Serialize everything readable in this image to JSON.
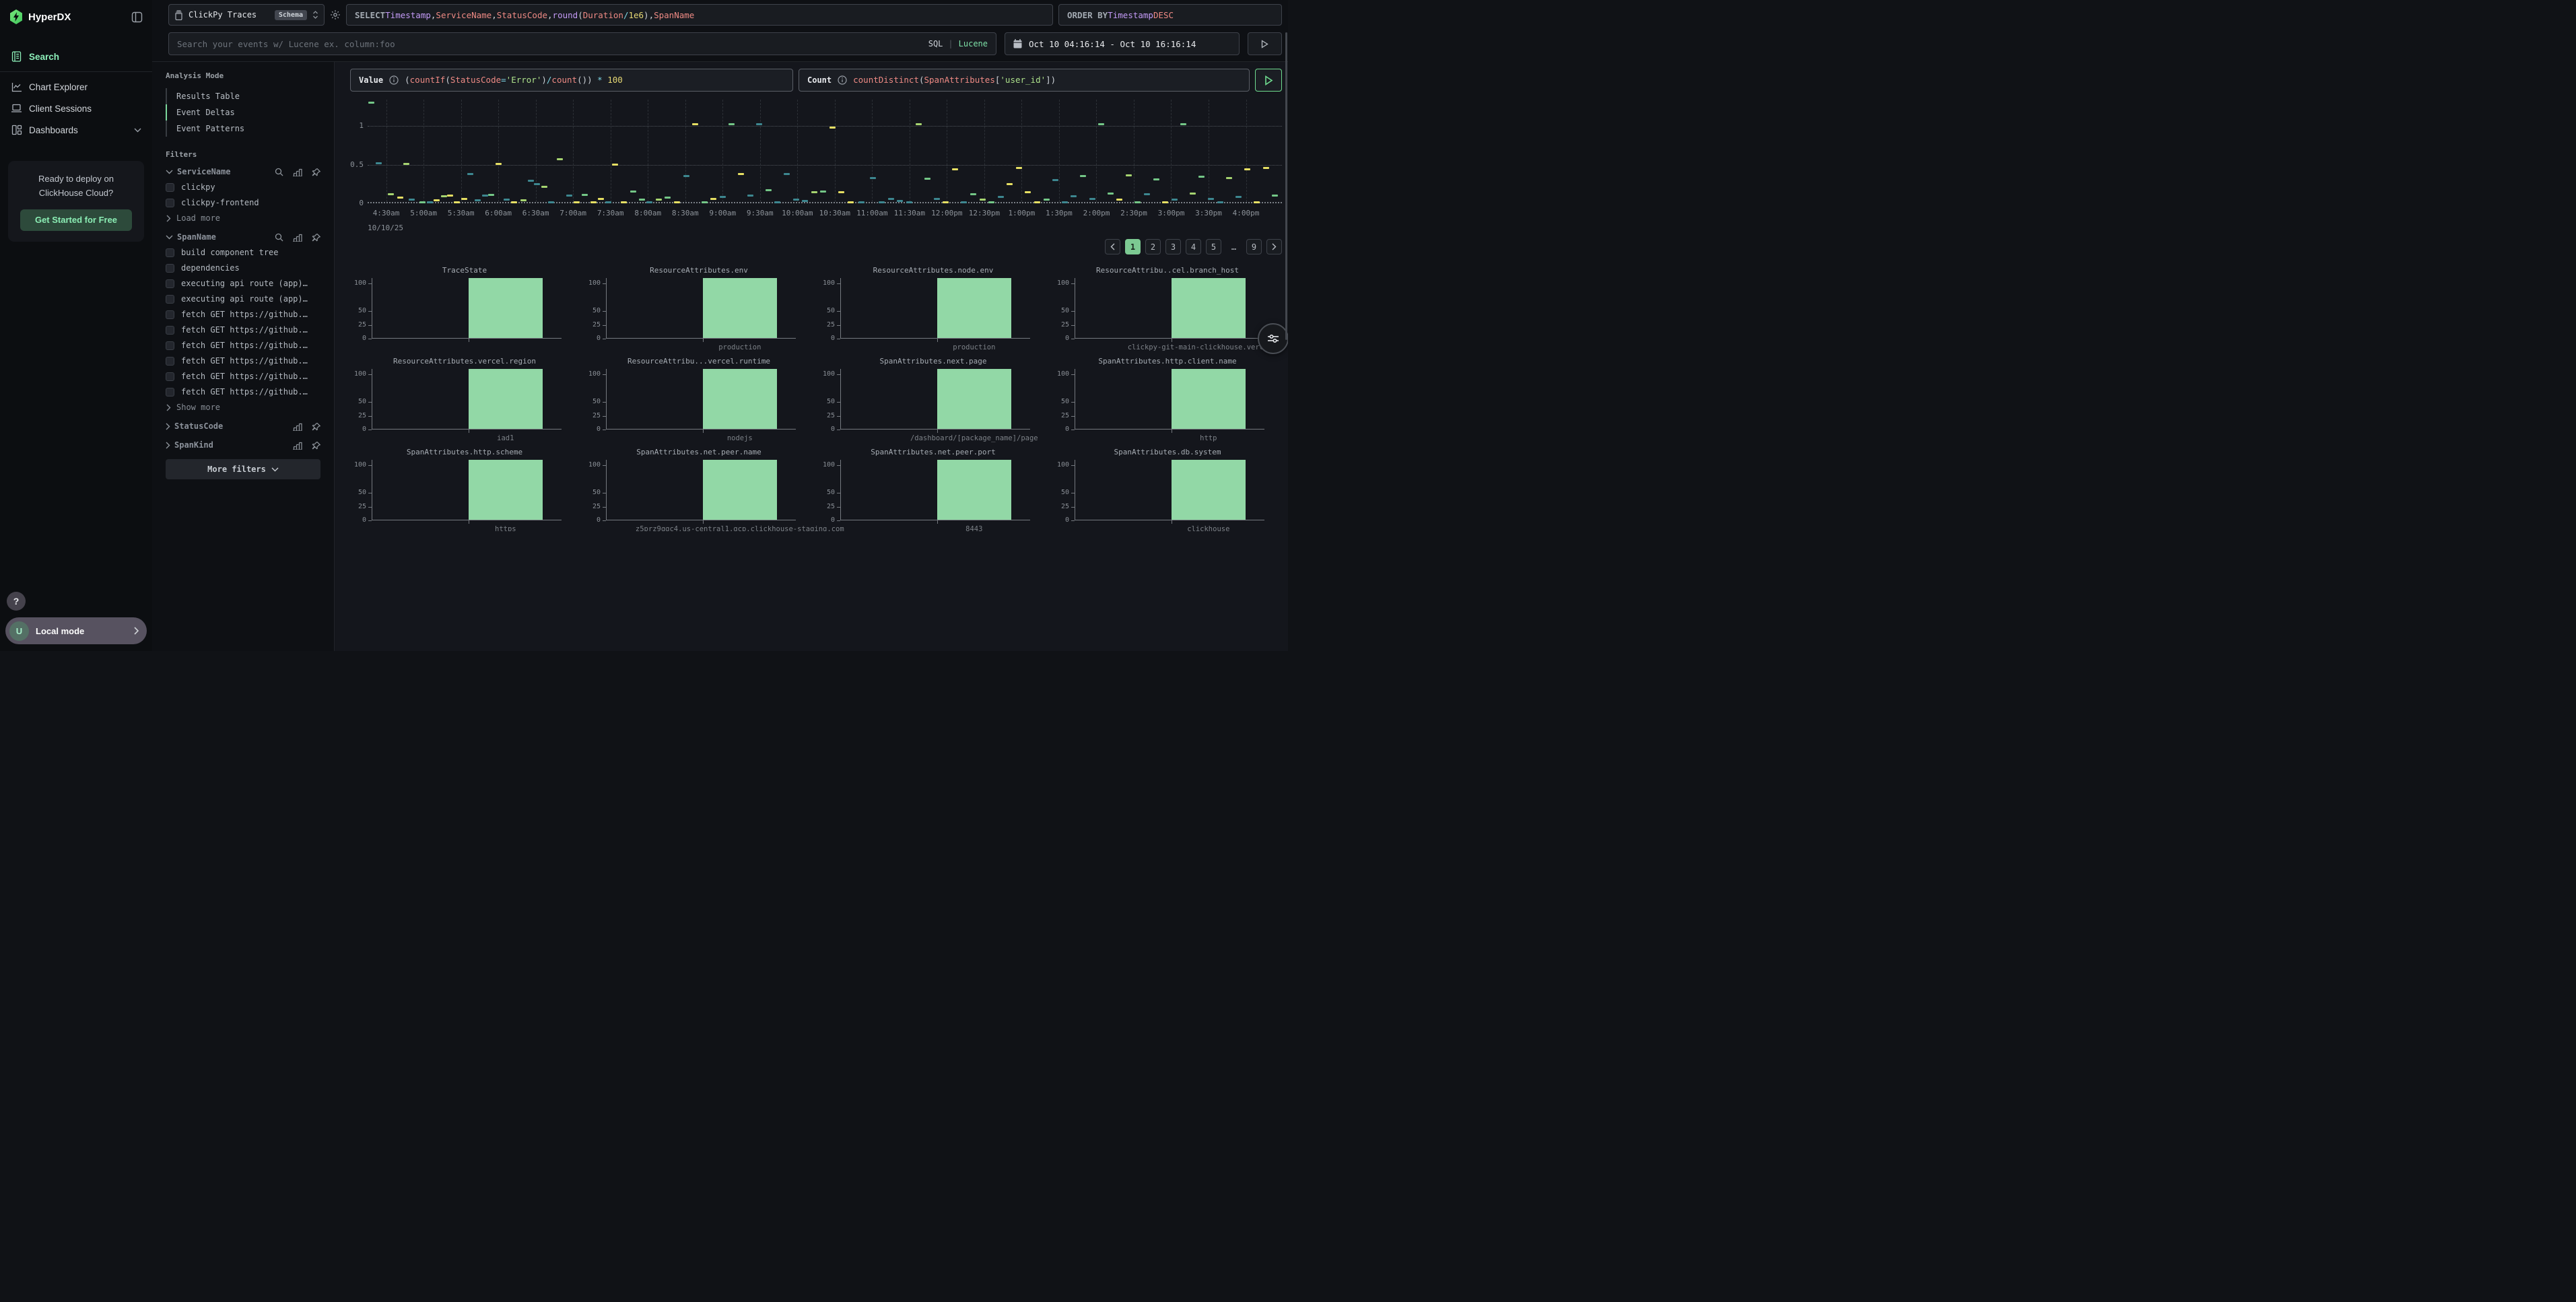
{
  "app": {
    "brand": "HyperDX"
  },
  "sidebar": {
    "nav": [
      {
        "label": "Search",
        "icon": "search-doc",
        "active": true
      },
      {
        "label": "Chart Explorer",
        "icon": "chart-line",
        "active": false
      },
      {
        "label": "Client Sessions",
        "icon": "laptop",
        "active": false
      },
      {
        "label": "Dashboards",
        "icon": "dashboard",
        "active": false,
        "chevron": true
      }
    ],
    "promo": {
      "line1": "Ready to deploy on",
      "line2": "ClickHouse Cloud?",
      "cta": "Get Started for Free"
    },
    "help": "?",
    "local_mode": {
      "avatar": "U",
      "label": "Local mode"
    }
  },
  "topbar": {
    "source": {
      "name": "ClickPy Traces",
      "badge": "Schema"
    },
    "sql_tokens": [
      {
        "t": "SELECT ",
        "c": "kw"
      },
      {
        "t": "Timestamp",
        "c": "field"
      },
      {
        "t": ", ",
        "c": "pl"
      },
      {
        "t": "ServiceName",
        "c": "id"
      },
      {
        "t": ", ",
        "c": "pl"
      },
      {
        "t": "StatusCode",
        "c": "id"
      },
      {
        "t": ", ",
        "c": "pl"
      },
      {
        "t": "round",
        "c": "field"
      },
      {
        "t": "(",
        "c": "pl"
      },
      {
        "t": "Duration",
        "c": "id"
      },
      {
        "t": " ",
        "c": "pl"
      },
      {
        "t": "/",
        "c": "op"
      },
      {
        "t": " ",
        "c": "pl"
      },
      {
        "t": "1e6",
        "c": "num"
      },
      {
        "t": ")",
        "c": "pl"
      },
      {
        "t": ", ",
        "c": "pl"
      },
      {
        "t": "SpanName",
        "c": "id"
      }
    ],
    "order_tokens": [
      {
        "t": "ORDER BY ",
        "c": "kw"
      },
      {
        "t": "Timestamp",
        "c": "field"
      },
      {
        "t": " ",
        "c": "pl"
      },
      {
        "t": "DESC",
        "c": "id"
      }
    ],
    "search": {
      "placeholder": "Search your events w/ Lucene ex. column:foo",
      "mode_sql": "SQL",
      "mode_lucene": "Lucene",
      "active_mode": "Lucene"
    },
    "date_range": "Oct 10 04:16:14 - Oct 10 16:16:14"
  },
  "filters_panel": {
    "analysis_title": "Analysis Mode",
    "analysis_options": [
      "Results Table",
      "Event Deltas",
      "Event Patterns"
    ],
    "analysis_active": "Event Deltas",
    "filters_title": "Filters",
    "groups": [
      {
        "name": "ServiceName",
        "expanded": true,
        "searchable": true,
        "items": [
          "clickpy",
          "clickpy-frontend"
        ],
        "footer": "Load more"
      },
      {
        "name": "SpanName",
        "expanded": true,
        "searchable": true,
        "items": [
          "build component tree",
          "dependencies",
          "executing api route (app)…",
          "executing api route (app)…",
          "fetch GET https://github.…",
          "fetch GET https://github.…",
          "fetch GET https://github.…",
          "fetch GET https://github.…",
          "fetch GET https://github.…",
          "fetch GET https://github.…"
        ],
        "footer": "Show more"
      },
      {
        "name": "StatusCode",
        "expanded": false,
        "searchable": false,
        "items": [],
        "footer": null
      },
      {
        "name": "SpanKind",
        "expanded": false,
        "searchable": false,
        "items": [],
        "footer": null
      }
    ],
    "more_filters": "More filters"
  },
  "query_row": {
    "value_label": "Value",
    "value_tokens": [
      {
        "t": "(",
        "c": "pl"
      },
      {
        "t": "countIf",
        "c": "id"
      },
      {
        "t": "(",
        "c": "pl"
      },
      {
        "t": "StatusCode",
        "c": "id"
      },
      {
        "t": "=",
        "c": "op"
      },
      {
        "t": "'Error'",
        "c": "str"
      },
      {
        "t": ")",
        "c": "pl"
      },
      {
        "t": "/",
        "c": "op"
      },
      {
        "t": "count",
        "c": "id"
      },
      {
        "t": "())",
        "c": "pl"
      },
      {
        "t": " ",
        "c": "pl"
      },
      {
        "t": "*",
        "c": "op"
      },
      {
        "t": " ",
        "c": "pl"
      },
      {
        "t": "100",
        "c": "num"
      }
    ],
    "count_label": "Count",
    "count_tokens": [
      {
        "t": "countDistinct",
        "c": "id"
      },
      {
        "t": "(",
        "c": "pl"
      },
      {
        "t": "SpanAttributes",
        "c": "id"
      },
      {
        "t": "[",
        "c": "pl"
      },
      {
        "t": "'user_id'",
        "c": "str"
      },
      {
        "t": "]",
        "c": "pl"
      },
      {
        "t": ")",
        "c": "pl"
      }
    ]
  },
  "pagination": {
    "pages": [
      "1",
      "2",
      "3",
      "4",
      "5",
      "…",
      "9"
    ],
    "active": "1"
  },
  "chart_data": {
    "main": {
      "type": "scatter",
      "title": "",
      "yticks": [
        0,
        0.5,
        1
      ],
      "ylim": [
        0,
        1.34
      ],
      "unit_px_note": "short horizontal dash marks",
      "date": "10/10/25",
      "x_labels": [
        "4:30am",
        "5:00am",
        "5:30am",
        "6:00am",
        "6:30am",
        "7:00am",
        "7:30am",
        "8:00am",
        "8:30am",
        "9:00am",
        "9:30am",
        "10:00am",
        "10:30am",
        "11:00am",
        "11:30am",
        "12:00pm",
        "12:30pm",
        "1:00pm",
        "1:30pm",
        "2:00pm",
        "2:30pm",
        "3:00pm",
        "3:30pm",
        "4:00pm"
      ],
      "colors": {
        "g": "#74c787",
        "t": "#3d8790",
        "y": "#e6df63",
        "l": "#a6d470"
      },
      "marks": [
        [
          0.004,
          1.3,
          "g"
        ],
        [
          0.012,
          0.52,
          "t"
        ],
        [
          0.025,
          0.12,
          "l"
        ],
        [
          0.035,
          0.07,
          "y"
        ],
        [
          0.042,
          0.51,
          "l"
        ],
        [
          0.048,
          0.05,
          "t"
        ],
        [
          0.06,
          0.015,
          "g"
        ],
        [
          0.068,
          0.015,
          "t"
        ],
        [
          0.075,
          0.04,
          "y"
        ],
        [
          0.083,
          0.09,
          "l"
        ],
        [
          0.09,
          0.1,
          "y"
        ],
        [
          0.097,
          0.015,
          "y"
        ],
        [
          0.105,
          0.06,
          "y"
        ],
        [
          0.112,
          0.38,
          "t"
        ],
        [
          0.12,
          0.04,
          "t"
        ],
        [
          0.128,
          0.1,
          "t"
        ],
        [
          0.135,
          0.11,
          "g"
        ],
        [
          0.143,
          0.51,
          "y"
        ],
        [
          0.152,
          0.05,
          "t"
        ],
        [
          0.16,
          0.015,
          "y"
        ],
        [
          0.17,
          0.04,
          "l"
        ],
        [
          0.178,
          0.29,
          "t"
        ],
        [
          0.185,
          0.25,
          "t"
        ],
        [
          0.193,
          0.21,
          "l"
        ],
        [
          0.2,
          0.015,
          "t"
        ],
        [
          0.21,
          0.57,
          "l"
        ],
        [
          0.22,
          0.1,
          "t"
        ],
        [
          0.228,
          0.015,
          "y"
        ],
        [
          0.237,
          0.11,
          "g"
        ],
        [
          0.247,
          0.015,
          "y"
        ],
        [
          0.255,
          0.06,
          "y"
        ],
        [
          0.263,
          0.015,
          "t"
        ],
        [
          0.27,
          0.5,
          "y"
        ],
        [
          0.28,
          0.015,
          "y"
        ],
        [
          0.29,
          0.15,
          "g"
        ],
        [
          0.3,
          0.05,
          "g"
        ],
        [
          0.308,
          0.015,
          "t"
        ],
        [
          0.318,
          0.05,
          "l"
        ],
        [
          0.328,
          0.07,
          "g"
        ],
        [
          0.338,
          0.015,
          "y"
        ],
        [
          0.348,
          0.35,
          "t"
        ],
        [
          0.358,
          1.02,
          "y"
        ],
        [
          0.368,
          0.015,
          "g"
        ],
        [
          0.378,
          0.06,
          "y"
        ],
        [
          0.388,
          0.08,
          "t"
        ],
        [
          0.398,
          1.02,
          "g"
        ],
        [
          0.408,
          0.38,
          "y"
        ],
        [
          0.418,
          0.1,
          "t"
        ],
        [
          0.428,
          1.02,
          "t"
        ],
        [
          0.438,
          0.17,
          "g"
        ],
        [
          0.448,
          0.015,
          "t"
        ],
        [
          0.458,
          0.38,
          "t"
        ],
        [
          0.468,
          0.05,
          "t"
        ],
        [
          0.478,
          0.03,
          "t"
        ],
        [
          0.488,
          0.14,
          "l"
        ],
        [
          0.498,
          0.15,
          "g"
        ],
        [
          0.508,
          0.98,
          "y"
        ],
        [
          0.518,
          0.14,
          "y"
        ],
        [
          0.528,
          0.015,
          "y"
        ],
        [
          0.54,
          0.015,
          "t"
        ],
        [
          0.552,
          0.33,
          "t"
        ],
        [
          0.562,
          0.015,
          "t"
        ],
        [
          0.572,
          0.06,
          "t"
        ],
        [
          0.582,
          0.03,
          "t"
        ],
        [
          0.592,
          0.015,
          "t"
        ],
        [
          0.602,
          1.02,
          "l"
        ],
        [
          0.612,
          0.32,
          "g"
        ],
        [
          0.622,
          0.06,
          "t"
        ],
        [
          0.632,
          0.015,
          "y"
        ],
        [
          0.642,
          0.44,
          "y"
        ],
        [
          0.652,
          0.015,
          "t"
        ],
        [
          0.662,
          0.12,
          "g"
        ],
        [
          0.672,
          0.05,
          "l"
        ],
        [
          0.682,
          0.015,
          "g"
        ],
        [
          0.692,
          0.08,
          "t"
        ],
        [
          0.702,
          0.25,
          "y"
        ],
        [
          0.712,
          0.46,
          "y"
        ],
        [
          0.722,
          0.14,
          "y"
        ],
        [
          0.732,
          0.015,
          "y"
        ],
        [
          0.742,
          0.05,
          "g"
        ],
        [
          0.752,
          0.3,
          "t"
        ],
        [
          0.762,
          0.015,
          "t"
        ],
        [
          0.772,
          0.09,
          "t"
        ],
        [
          0.782,
          0.35,
          "g"
        ],
        [
          0.792,
          0.06,
          "t"
        ],
        [
          0.802,
          1.02,
          "g"
        ],
        [
          0.812,
          0.13,
          "g"
        ],
        [
          0.822,
          0.05,
          "y"
        ],
        [
          0.832,
          0.36,
          "l"
        ],
        [
          0.842,
          0.015,
          "g"
        ],
        [
          0.852,
          0.12,
          "t"
        ],
        [
          0.862,
          0.31,
          "g"
        ],
        [
          0.872,
          0.015,
          "y"
        ],
        [
          0.882,
          0.05,
          "t"
        ],
        [
          0.892,
          1.02,
          "g"
        ],
        [
          0.902,
          0.13,
          "l"
        ],
        [
          0.912,
          0.34,
          "g"
        ],
        [
          0.922,
          0.06,
          "t"
        ],
        [
          0.932,
          0.015,
          "t"
        ],
        [
          0.942,
          0.33,
          "l"
        ],
        [
          0.952,
          0.08,
          "t"
        ],
        [
          0.962,
          0.44,
          "y"
        ],
        [
          0.972,
          0.015,
          "y"
        ],
        [
          0.982,
          0.46,
          "y"
        ],
        [
          0.992,
          0.1,
          "g"
        ]
      ]
    },
    "minis": {
      "type": "bar",
      "yticks": [
        100,
        50,
        25,
        0
      ],
      "ylim": [
        0,
        110
      ],
      "bar_value": 100,
      "bar_color": "#92d8a6",
      "charts": [
        {
          "title": "TraceState",
          "xlabel": ""
        },
        {
          "title": "ResourceAttributes.env",
          "xlabel": "production"
        },
        {
          "title": "ResourceAttributes.node.env",
          "xlabel": "production"
        },
        {
          "title": "ResourceAttribu..cel.branch_host",
          "xlabel": "clickpy-git-main-clickhouse.vercel.app"
        },
        {
          "title": "ResourceAttributes.vercel.region",
          "xlabel": "iad1"
        },
        {
          "title": "ResourceAttribu...vercel.runtime",
          "xlabel": "nodejs"
        },
        {
          "title": "SpanAttributes.next.page",
          "xlabel": "/dashboard/[package_name]/page"
        },
        {
          "title": "SpanAttributes.http.client.name",
          "xlabel": "http"
        },
        {
          "title": "SpanAttributes.http.scheme",
          "xlabel": "https"
        },
        {
          "title": "SpanAttributes.net.peer.name",
          "xlabel": "z5prz9qgc4.us-central1.gcp.clickhouse-staging.com"
        },
        {
          "title": "SpanAttributes.net.peer.port",
          "xlabel": "8443"
        },
        {
          "title": "SpanAttributes.db.system",
          "xlabel": "clickhouse"
        }
      ]
    }
  }
}
